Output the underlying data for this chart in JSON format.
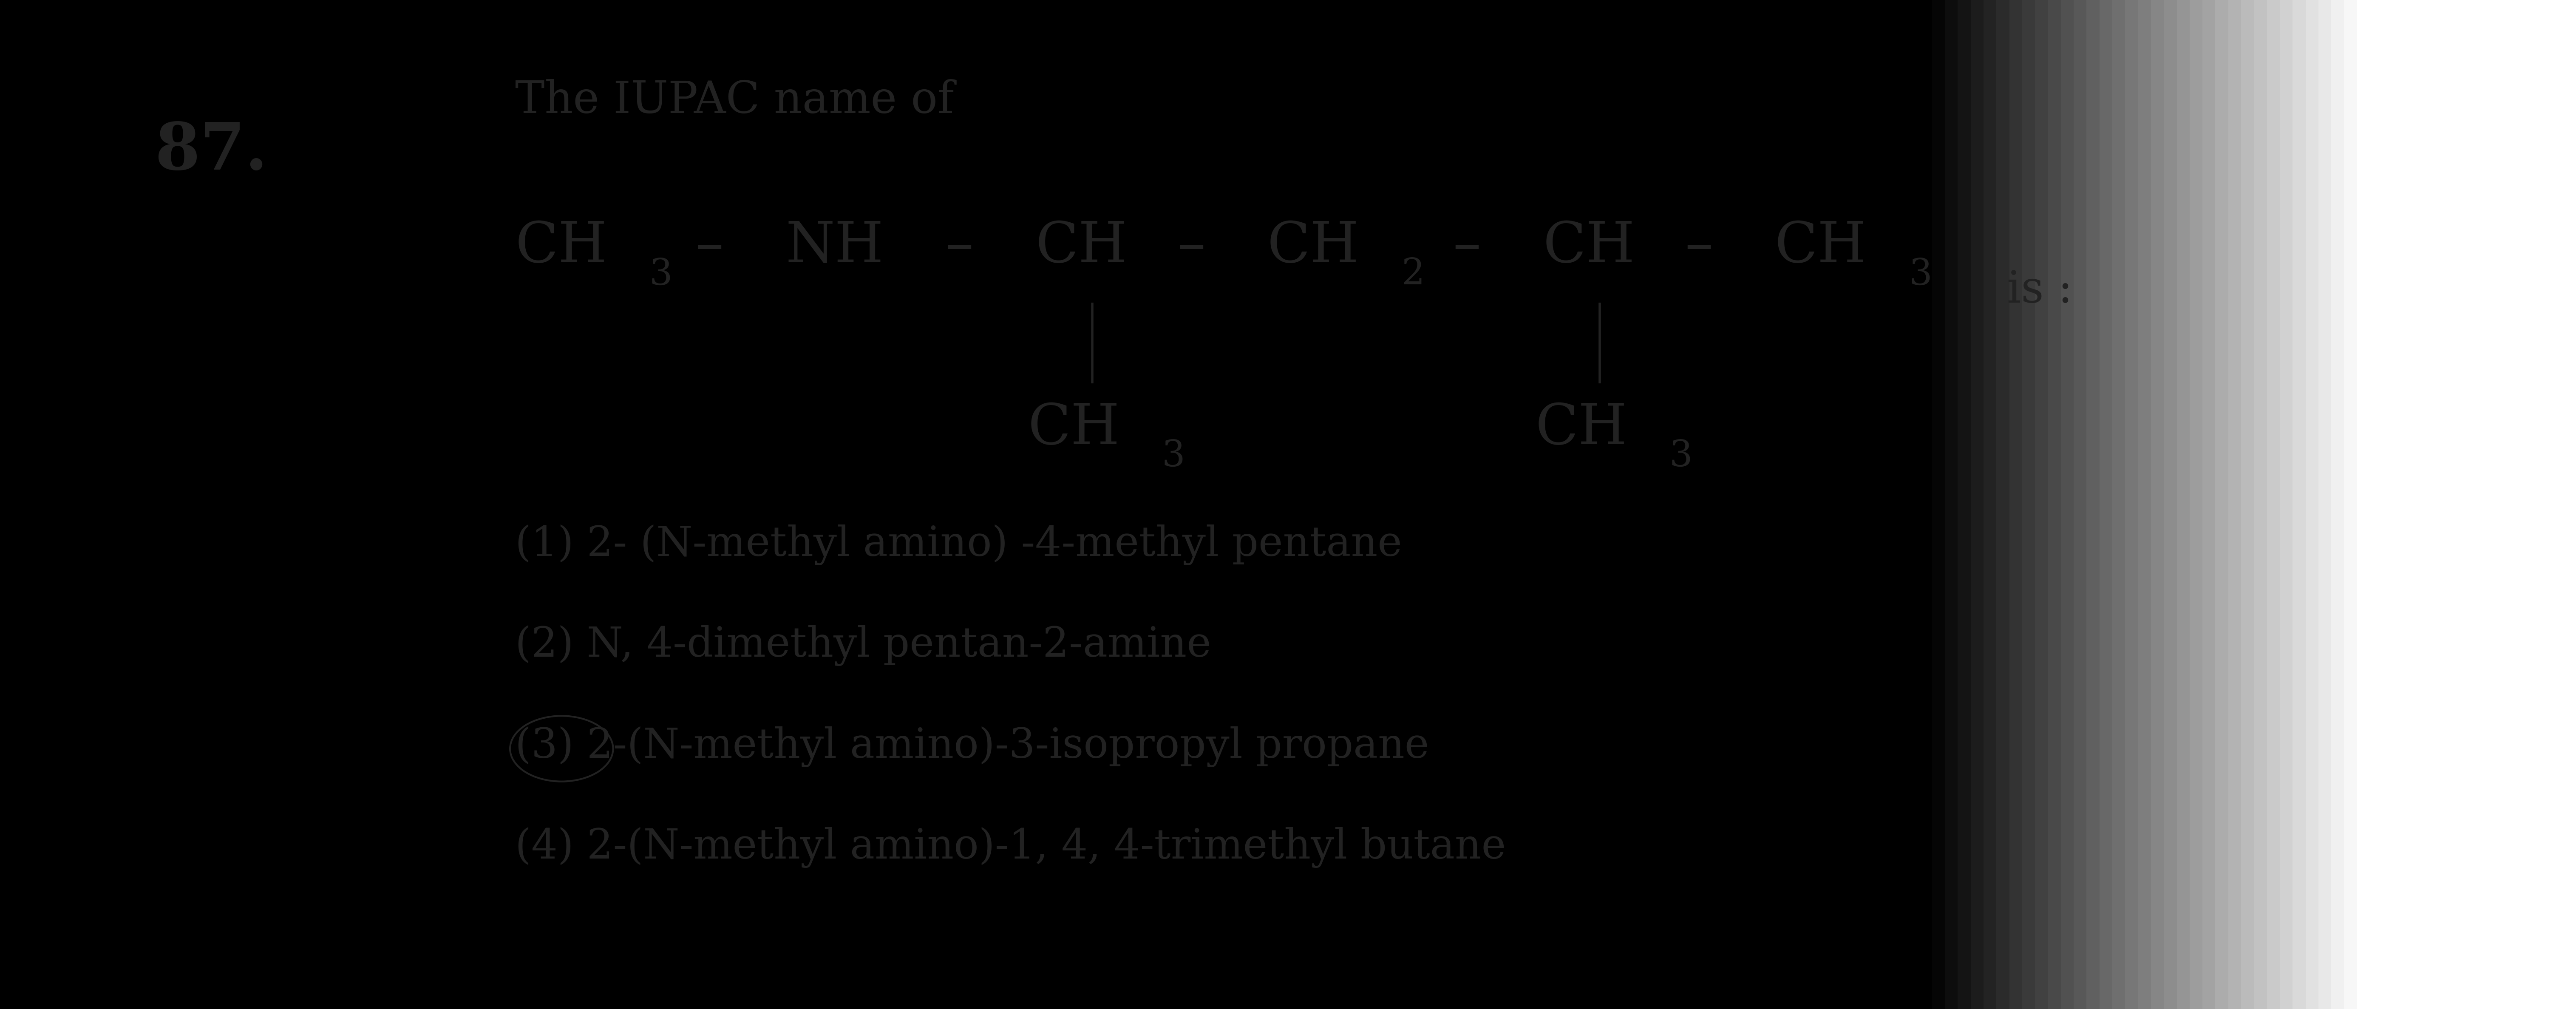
{
  "background_color": "#d8d5cc",
  "background_left": "#e8e8e8",
  "background_right": "#c8c5bc",
  "question_number": "87.",
  "intro_text": "The IUPAC name of",
  "is_text": "is :",
  "options": [
    "(1) 2- (N-methyl amino) -4-methyl pentane",
    "(2) N, 4-dimethyl pentan-2-amine",
    "(3) 2-(N-methyl amino)-3-isopropyl propane",
    "(4) 2-(N-methyl amino)-1, 4, 4-trimethyl butane"
  ],
  "correct_option_index": 2,
  "font_size_formula": 95,
  "font_size_sub": 62,
  "font_size_options": 70,
  "font_size_number": 110,
  "font_size_intro": 75,
  "text_color": "#222222"
}
